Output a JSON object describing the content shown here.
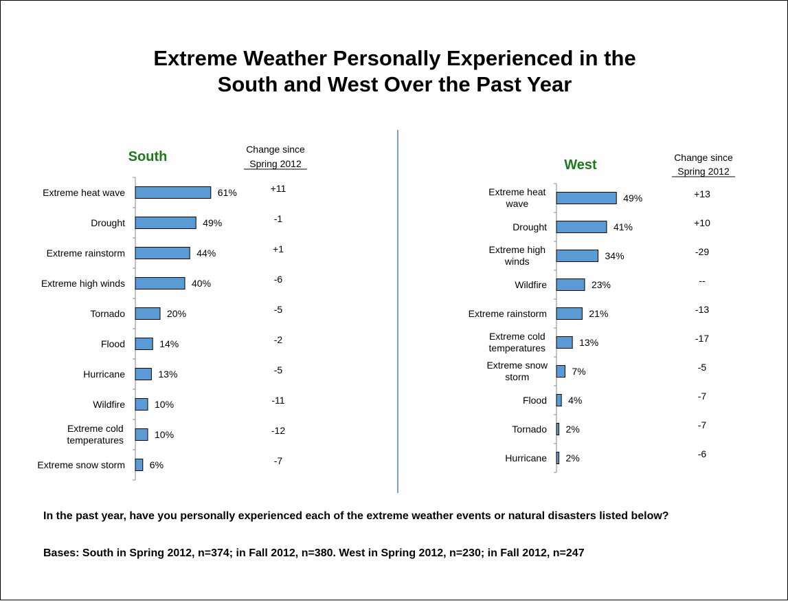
{
  "title": {
    "line1": "Extreme Weather Personally Experienced in the",
    "line2": "South and West Over the Past Year"
  },
  "colors": {
    "bar": "#5b9bd5",
    "region_title": "#1a7a1a",
    "divider": "#4a7ebf"
  },
  "chart_data": [
    {
      "type": "bar",
      "orientation": "horizontal",
      "title": "South",
      "change_header": [
        "Change since",
        "Spring 2012"
      ],
      "categories": [
        "Extreme heat wave",
        "Drought",
        "Extreme rainstorm",
        "Extreme high winds",
        "Tornado",
        "Flood",
        "Hurricane",
        "Wildfire",
        "Extreme cold temperatures",
        "Extreme snow storm"
      ],
      "values": [
        61,
        49,
        44,
        40,
        20,
        14,
        13,
        10,
        10,
        6
      ],
      "data_labels": [
        "61%",
        "49%",
        "44%",
        "40%",
        "20%",
        "14%",
        "13%",
        "10%",
        "10%",
        "6%"
      ],
      "change": [
        "+11",
        "-1",
        "+1",
        "-6",
        "-5",
        "-2",
        "-5",
        "-11",
        "-12",
        "-7"
      ],
      "xlim": [
        0,
        100
      ],
      "grid": false
    },
    {
      "type": "bar",
      "orientation": "horizontal",
      "title": "West",
      "change_header": [
        "Change since",
        "Spring 2012"
      ],
      "categories": [
        "Extreme heat wave",
        "Drought",
        "Extreme high winds",
        "Wildfire",
        "Extreme rainstorm",
        "Extreme cold temperatures",
        "Extreme snow storm",
        "Flood",
        "Tornado",
        "Hurricane"
      ],
      "values": [
        49,
        41,
        34,
        23,
        21,
        13,
        7,
        4,
        2,
        2
      ],
      "data_labels": [
        "49%",
        "41%",
        "34%",
        "23%",
        "21%",
        "13%",
        "7%",
        "4%",
        "2%",
        "2%"
      ],
      "change": [
        "+13",
        "+10",
        "-29",
        "--",
        "-13",
        "-17",
        "-5",
        "-7",
        "-7",
        "-6"
      ],
      "xlim": [
        0,
        100
      ],
      "grid": false
    }
  ],
  "footer": {
    "question": "In the past year, have you personally experienced each of the extreme weather events or natural disasters listed below?",
    "bases": "Bases: South in Spring 2012, n=374; in Fall 2012, n=380. West in Spring 2012, n=230; in Fall 2012, n=247"
  }
}
